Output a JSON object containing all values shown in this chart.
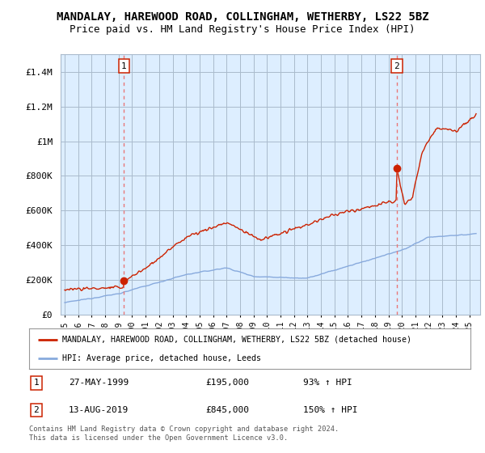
{
  "title": "MANDALAY, HAREWOOD ROAD, COLLINGHAM, WETHERBY, LS22 5BZ",
  "subtitle": "Price paid vs. HM Land Registry's House Price Index (HPI)",
  "title_fontsize": 10,
  "subtitle_fontsize": 9,
  "ylim": [
    0,
    1500000
  ],
  "yticks": [
    0,
    200000,
    400000,
    600000,
    800000,
    1000000,
    1200000,
    1400000
  ],
  "ytick_labels": [
    "£0",
    "£200K",
    "£400K",
    "£600K",
    "£800K",
    "£1M",
    "£1.2M",
    "£1.4M"
  ],
  "xlim_start": 1994.7,
  "xlim_end": 2025.8,
  "xtick_years": [
    1995,
    1996,
    1997,
    1998,
    1999,
    2000,
    2001,
    2002,
    2003,
    2004,
    2005,
    2006,
    2007,
    2008,
    2009,
    2010,
    2011,
    2012,
    2013,
    2014,
    2015,
    2016,
    2017,
    2018,
    2019,
    2020,
    2021,
    2022,
    2023,
    2024,
    2025
  ],
  "sale1_x": 1999.4,
  "sale1_y": 195000,
  "sale1_label": "1",
  "sale2_x": 2019.62,
  "sale2_y": 845000,
  "sale2_label": "2",
  "vline_color": "#e87878",
  "red_line_color": "#cc2200",
  "blue_line_color": "#88aadd",
  "chart_bg_color": "#ddeeff",
  "background_color": "#ffffff",
  "grid_color": "#aabbcc",
  "legend_label_red": "MANDALAY, HAREWOOD ROAD, COLLINGHAM, WETHERBY, LS22 5BZ (detached house)",
  "legend_label_blue": "HPI: Average price, detached house, Leeds",
  "footer": "Contains HM Land Registry data © Crown copyright and database right 2024.\nThis data is licensed under the Open Government Licence v3.0.",
  "table_row1": [
    "1",
    "27-MAY-1999",
    "£195,000",
    "93% ↑ HPI"
  ],
  "table_row2": [
    "2",
    "13-AUG-2019",
    "£845,000",
    "150% ↑ HPI"
  ]
}
